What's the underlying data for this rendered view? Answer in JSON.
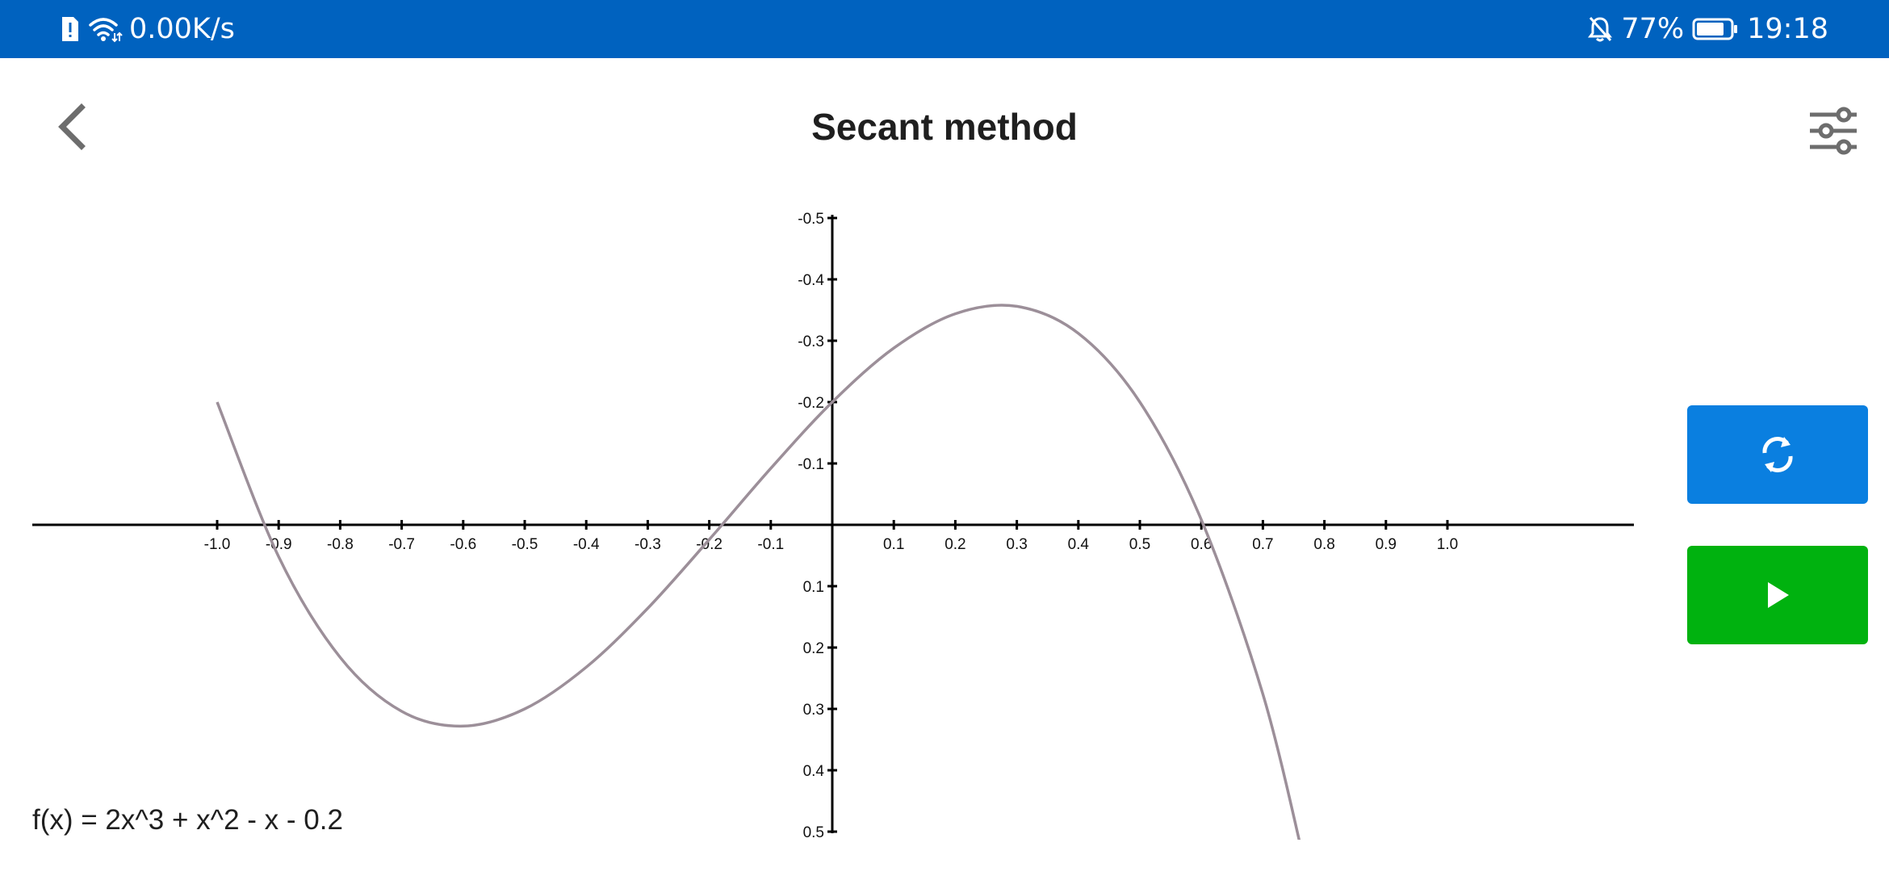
{
  "status_bar": {
    "net_speed": "0.00K/s",
    "battery": "77%",
    "time": "19:18",
    "icons": [
      "sim-alert-icon",
      "wifi-icon",
      "bell-off-icon",
      "battery-icon"
    ],
    "background": "#0062bf"
  },
  "app_bar": {
    "title": "Secant method",
    "back_icon": "chevron-left-icon",
    "settings_icon": "sliders-icon"
  },
  "actions": {
    "reset": {
      "icon": "refresh-icon",
      "color": "#0a7fe0"
    },
    "run": {
      "icon": "play-icon",
      "color": "#00b20f"
    }
  },
  "formula": "f(x) = 2x^3 + x^2 - x - 0.2",
  "chart_data": {
    "type": "line",
    "x_ticks": [
      "-1.0",
      "-0.9",
      "-0.8",
      "-0.7",
      "-0.6",
      "-0.5",
      "-0.4",
      "-0.3",
      "-0.2",
      "-0.1",
      "0.1",
      "0.2",
      "0.3",
      "0.4",
      "0.5",
      "0.6",
      "0.7",
      "0.8",
      "0.9",
      "1.0"
    ],
    "y_ticks": [
      "-0.5",
      "-0.4",
      "-0.3",
      "-0.2",
      "-0.1",
      "0.1",
      "0.2",
      "0.3",
      "0.4",
      "0.5"
    ],
    "xlim": [
      -1.0,
      1.0
    ],
    "ylim": [
      -0.5,
      0.5
    ],
    "y_axis_inverted": true,
    "grid": false,
    "series": [
      {
        "color": "#9c8f99",
        "x": [
          -1.0,
          -0.9,
          -0.8,
          -0.7,
          -0.6,
          -0.5,
          -0.4,
          -0.3,
          -0.2,
          -0.1,
          0.0,
          0.1,
          0.2,
          0.3,
          0.4,
          0.5,
          0.6,
          0.7,
          0.77
        ],
        "y": [
          -0.2,
          0.052,
          0.216,
          0.304,
          0.328,
          0.3,
          0.232,
          0.136,
          0.024,
          -0.092,
          -0.2,
          -0.288,
          -0.344,
          -0.356,
          -0.312,
          -0.2,
          -0.008,
          0.276,
          0.561
        ]
      }
    ]
  }
}
